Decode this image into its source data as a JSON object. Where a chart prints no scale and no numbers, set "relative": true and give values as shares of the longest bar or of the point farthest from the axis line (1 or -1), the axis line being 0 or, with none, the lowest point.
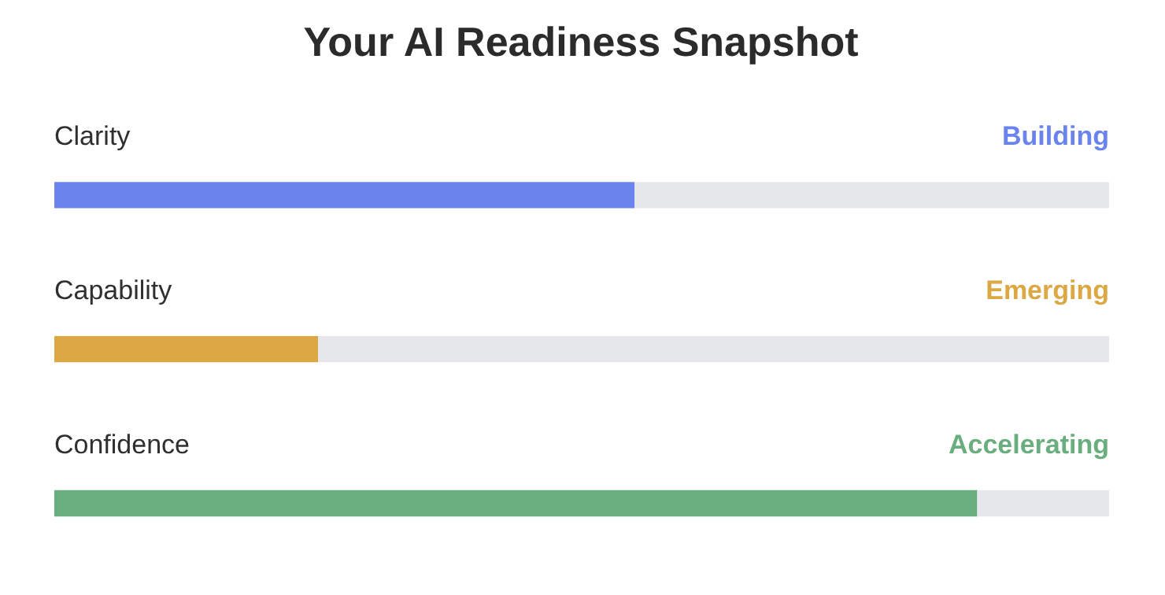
{
  "chart_data": {
    "type": "bar",
    "orientation": "horizontal",
    "stacked": true,
    "relative": true,
    "title": "Your AI Readiness Snapshot",
    "categories": [
      "Clarity",
      "Capability",
      "Confidence"
    ],
    "annotations": [
      "Building",
      "Emerging",
      "Accelerating"
    ],
    "series": [
      {
        "colors": [
          "#6b83ec",
          "#dba843",
          "#6aae7f"
        ],
        "values": [
          0.55,
          0.25,
          0.875
        ]
      },
      {
        "color": "#e5e7eb",
        "values": [
          0.45,
          0.75,
          0.125
        ]
      }
    ]
  }
}
